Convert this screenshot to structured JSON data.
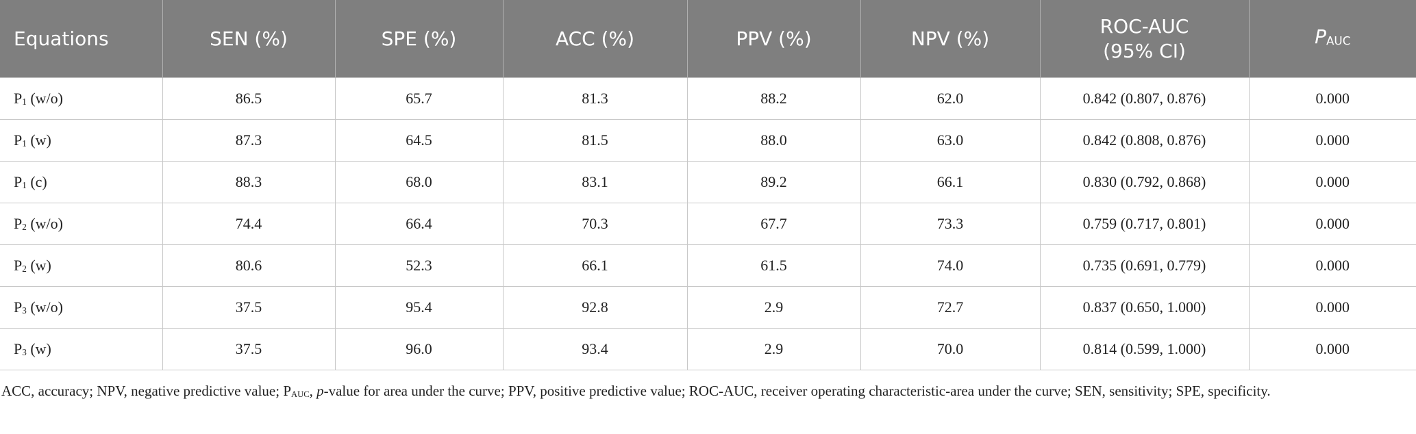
{
  "table": {
    "header": [
      "Equations",
      "SEN (%)",
      "SPE (%)",
      "ACC (%)",
      "PPV (%)",
      "NPV (%)",
      "ROC-AUC (95% CI)",
      {
        "base": "P",
        "sub": "AUC"
      }
    ],
    "rows": [
      [
        {
          "base": "P",
          "sub": "1",
          "rest": "(w/o)"
        },
        "86.5",
        "65.7",
        "81.3",
        "88.2",
        "62.0",
        "0.842 (0.807, 0.876)",
        "0.000"
      ],
      [
        {
          "base": "P",
          "sub": "1",
          "rest": "(w)"
        },
        "87.3",
        "64.5",
        "81.5",
        "88.0",
        "63.0",
        "0.842 (0.808, 0.876)",
        "0.000"
      ],
      [
        {
          "base": "P",
          "sub": "1",
          "rest": "(c)"
        },
        "88.3",
        "68.0",
        "83.1",
        "89.2",
        "66.1",
        "0.830 (0.792, 0.868)",
        "0.000"
      ],
      [
        {
          "base": "P",
          "sub": "2",
          "rest": "(w/o)"
        },
        "74.4",
        "66.4",
        "70.3",
        "67.7",
        "73.3",
        "0.759 (0.717, 0.801)",
        "0.000"
      ],
      [
        {
          "base": "P",
          "sub": "2",
          "rest": "(w)"
        },
        "80.6",
        "52.3",
        "66.1",
        "61.5",
        "74.0",
        "0.735 (0.691, 0.779)",
        "0.000"
      ],
      [
        {
          "base": "P",
          "sub": "3",
          "rest": "(w/o)"
        },
        "37.5",
        "95.4",
        "92.8",
        "2.9",
        "72.7",
        "0.837 (0.650, 1.000)",
        "0.000"
      ],
      [
        {
          "base": "P",
          "sub": "3",
          "rest": "(w)"
        },
        "37.5",
        "96.0",
        "93.4",
        "2.9",
        "70.0",
        "0.814 (0.599, 1.000)",
        "0.000"
      ]
    ]
  },
  "footnote": [
    {
      "text": "ACC, accuracy; NPV, negative predictive value; P"
    },
    {
      "text": "AUC",
      "style": "sub"
    },
    {
      "text": ", "
    },
    {
      "text": "p",
      "style": "italic"
    },
    {
      "text": "-value for area under the curve; PPV, positive predictive value; ROC-AUC, receiver operating characteristic-area under the curve; SEN, sensitivity; SPE, specificity."
    }
  ]
}
